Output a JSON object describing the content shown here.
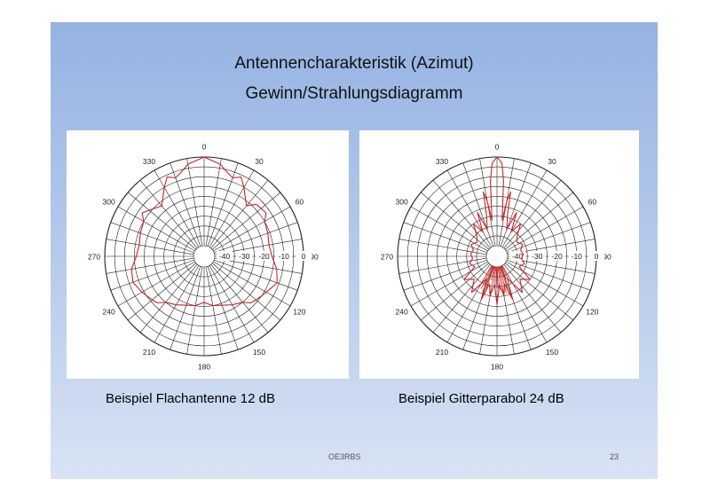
{
  "slide": {
    "title": "Antennencharakteristik (Azimut)",
    "subtitle": "Gewinn/Strahlungsdiagramm",
    "footer_left": "OE3RBS",
    "page_number": "23",
    "background": "#a9c1ea",
    "pattern_color": "#cc2222"
  },
  "chart_data": [
    {
      "type": "polar",
      "caption": "Beispiel Flachantenne 12 dB",
      "angle_labels": [
        "0",
        "30",
        "60",
        "90",
        "120",
        "150",
        "180",
        "210",
        "240",
        "270",
        "300",
        "330"
      ],
      "radial_labels": [
        "-40",
        "-30",
        "-20",
        "-10",
        "0"
      ],
      "rlim": [
        -45,
        0
      ],
      "grid": true,
      "azimuth_deg": [
        0,
        10,
        15,
        20,
        25,
        30,
        35,
        40,
        45,
        55,
        60,
        70,
        80,
        90,
        100,
        110,
        120,
        130,
        135,
        140,
        150,
        160,
        170,
        180,
        190,
        200,
        210,
        220,
        225,
        230,
        240,
        250,
        260,
        270,
        280,
        290,
        300,
        305,
        310,
        320,
        330,
        335,
        340,
        345,
        350
      ],
      "gain_db": [
        0,
        -3,
        -6,
        -8,
        -6,
        -10,
        -14,
        -17,
        -13,
        -12,
        -15,
        -16,
        -17,
        -16,
        -13,
        -11,
        -14,
        -16,
        -17,
        -20,
        -22,
        -24,
        -25,
        -27,
        -25,
        -24,
        -22,
        -20,
        -17,
        -16,
        -14,
        -12,
        -13,
        -16,
        -17,
        -16,
        -15,
        -12,
        -14,
        -17,
        -10,
        -6,
        -8,
        -6,
        -3
      ]
    },
    {
      "type": "polar",
      "caption": "Beispiel Gitterparabol 24 dB",
      "angle_labels": [
        "0",
        "30",
        "60",
        "90",
        "120",
        "150",
        "180",
        "210",
        "240",
        "270",
        "300",
        "330"
      ],
      "radial_labels": [
        "-40",
        "-30",
        "-20",
        "-10",
        "0"
      ],
      "rlim": [
        -45,
        0
      ],
      "grid": true,
      "azimuth_deg": [
        0,
        3,
        5,
        8,
        10,
        12,
        14,
        20,
        24,
        30,
        36,
        45,
        55,
        65,
        75,
        85,
        95,
        105,
        115,
        125,
        135,
        145,
        155,
        160,
        165,
        170,
        175,
        180,
        185,
        190,
        195,
        200,
        205,
        215,
        225,
        235,
        245,
        255,
        265,
        275,
        285,
        295,
        305,
        315,
        324,
        330,
        336,
        340,
        346,
        348,
        350,
        352,
        355,
        357
      ],
      "gain_db": [
        0,
        -3,
        -12,
        -32,
        -22,
        -17,
        -28,
        -36,
        -26,
        -36,
        -30,
        -36,
        -38,
        -36,
        -38,
        -37,
        -38,
        -36,
        -38,
        -30,
        -34,
        -28,
        -38,
        -27,
        -36,
        -30,
        -36,
        -26,
        -36,
        -30,
        -36,
        -27,
        -38,
        -28,
        -34,
        -30,
        -38,
        -36,
        -38,
        -37,
        -38,
        -36,
        -38,
        -36,
        -30,
        -36,
        -26,
        -36,
        -28,
        -17,
        -22,
        -32,
        -12,
        -3
      ]
    }
  ]
}
